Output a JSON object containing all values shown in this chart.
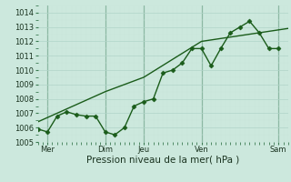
{
  "title": "",
  "xlabel": "Pression niveau de la mer( hPa )",
  "ylabel": "",
  "bg_color": "#cce8dd",
  "line_color": "#1a5c1a",
  "ylim": [
    1005,
    1014.5
  ],
  "xlim": [
    0,
    130
  ],
  "yticks": [
    1005,
    1006,
    1007,
    1008,
    1009,
    1010,
    1011,
    1012,
    1013,
    1014
  ],
  "xtick_positions": [
    5,
    35,
    55,
    85,
    125
  ],
  "xtick_labels": [
    "Mer",
    "Dim",
    "Jeu",
    "Ven",
    "Sam"
  ],
  "vlines": [
    5,
    35,
    55,
    85,
    125
  ],
  "line1_x": [
    0,
    5,
    10,
    15,
    20,
    25,
    30,
    35,
    40,
    45,
    50,
    55,
    60,
    65,
    70,
    75,
    80,
    85,
    90,
    95,
    100,
    105,
    110,
    115,
    120,
    125
  ],
  "line1_y": [
    1005.9,
    1005.7,
    1006.8,
    1007.1,
    1006.9,
    1006.8,
    1006.8,
    1005.7,
    1005.5,
    1006.0,
    1007.5,
    1007.8,
    1008.0,
    1009.8,
    1010.0,
    1010.5,
    1011.5,
    1011.5,
    1010.3,
    1011.5,
    1012.6,
    1013.0,
    1013.4,
    1012.6,
    1011.5,
    1011.5
  ],
  "line2_x": [
    0,
    35,
    55,
    85,
    130
  ],
  "line2_y": [
    1006.4,
    1008.5,
    1009.5,
    1012.0,
    1012.9
  ],
  "marker": "D",
  "marker_size": 2.5,
  "line_width": 1.0,
  "xlabel_fontsize": 7.5,
  "tick_fontsize": 6.0,
  "grid_major_color": "#b0d4c8",
  "grid_minor_color": "#c8e4da"
}
